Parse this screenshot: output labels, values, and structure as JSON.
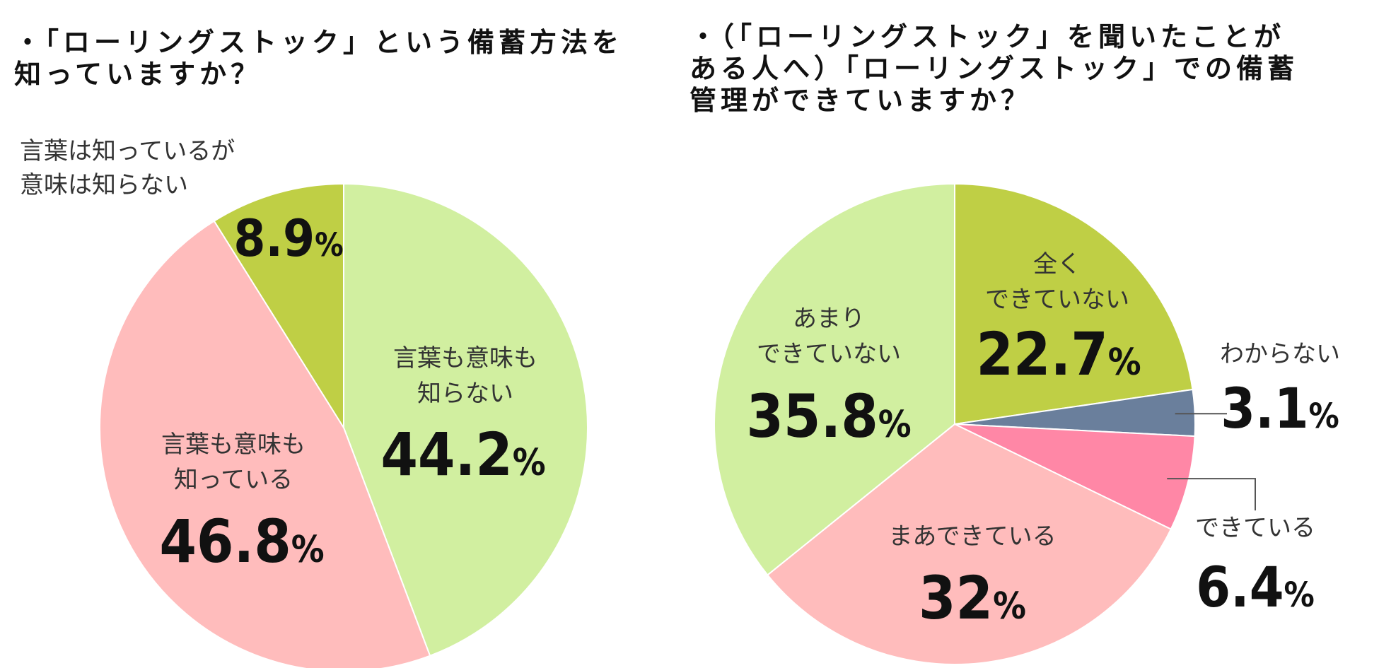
{
  "chart_data": [
    {
      "type": "pie",
      "title": "・「ローリングストック」という備蓄方法を\n知っていますか？",
      "slices": [
        {
          "label": "言葉も意味も\n知らない",
          "value": 44.2,
          "value_text": "44.2",
          "color": "#d1efa0"
        },
        {
          "label": "言葉も意味も\n知っている",
          "value": 46.8,
          "value_text": "46.8",
          "color": "#ffbcbc"
        },
        {
          "label": "言葉は知っているが\n意味は知らない",
          "value": 8.9,
          "value_text": "8.9",
          "color": "#bfcf45"
        }
      ],
      "unit": "%"
    },
    {
      "type": "pie",
      "title": "・（「ローリングストック」を聞いたことが\nある人へ）「ローリングストック」での備蓄\n管理ができていますか？",
      "slices": [
        {
          "label": "全く\nできていない",
          "value": 22.7,
          "value_text": "22.7",
          "color": "#bfcf45"
        },
        {
          "label": "わからない",
          "value": 3.1,
          "value_text": "3.1",
          "color": "#6a7f9c"
        },
        {
          "label": "できている",
          "value": 6.4,
          "value_text": "6.4",
          "color": "#ff87a6"
        },
        {
          "label": "まあできている",
          "value": 32,
          "value_text": "32",
          "color": "#ffbcbc"
        },
        {
          "label": "あまり\nできていない",
          "value": 35.8,
          "value_text": "35.8",
          "color": "#d1efa0"
        }
      ],
      "unit": "%"
    }
  ]
}
